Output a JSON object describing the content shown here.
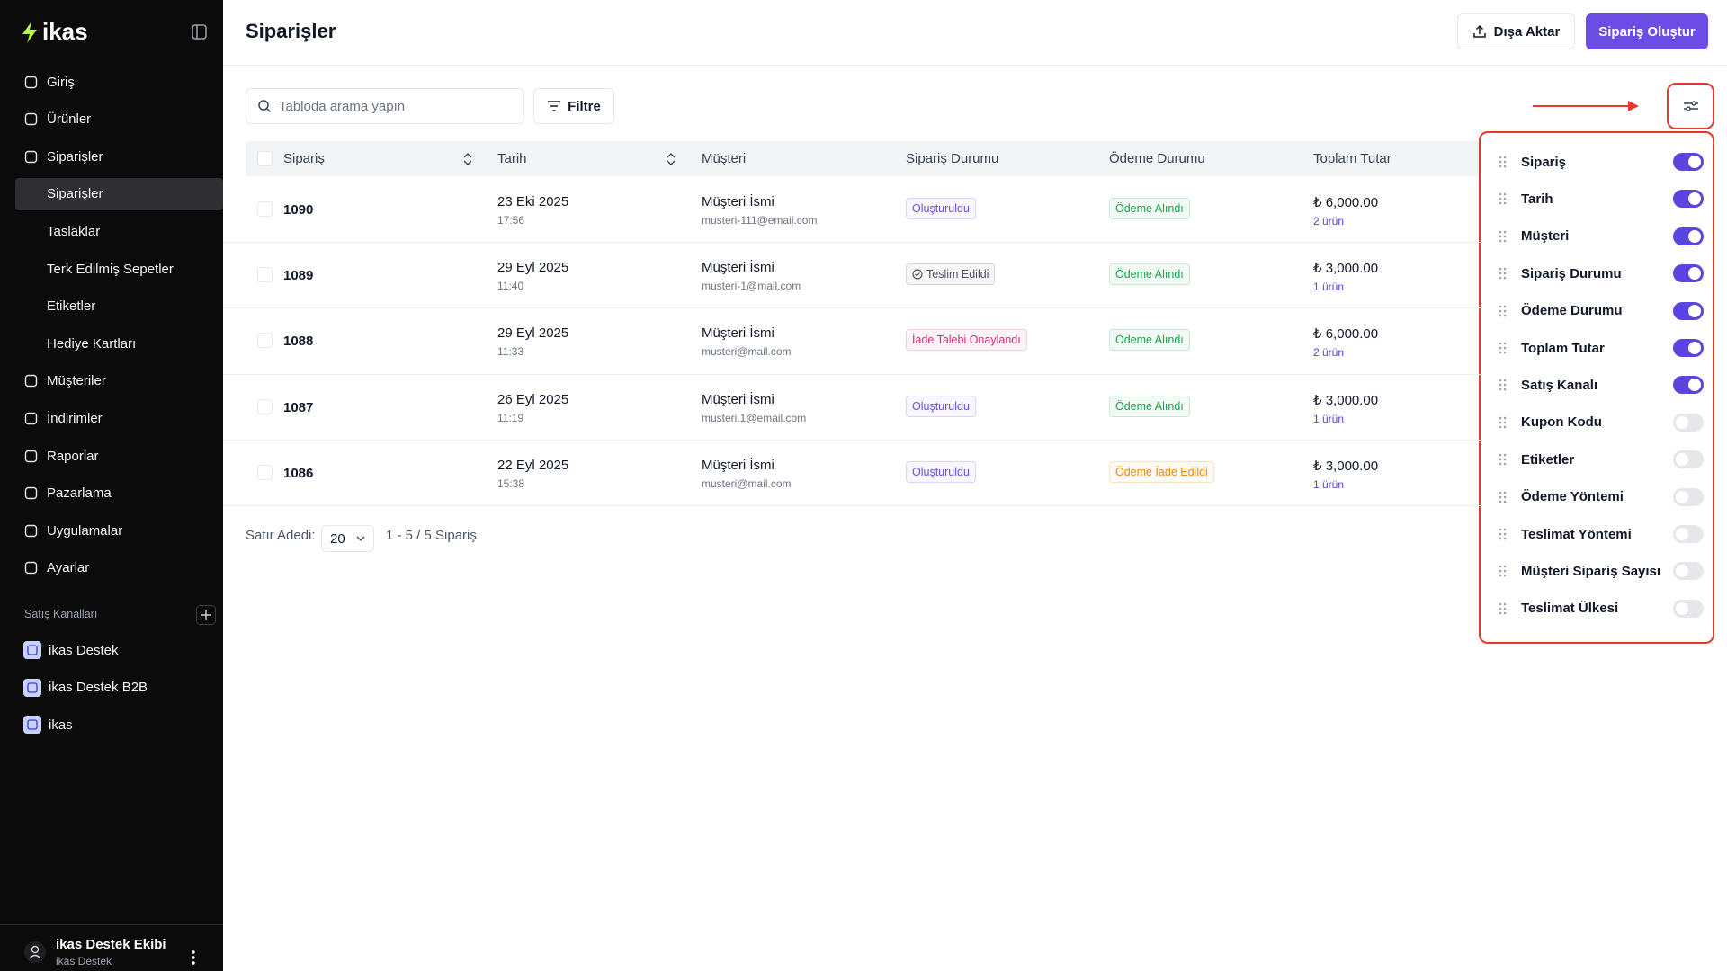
{
  "sidebar": {
    "brand": "ikas",
    "nav_top": [
      "Giriş",
      "Ürünler",
      "Siparişler"
    ],
    "sub_nav": [
      "Siparişler",
      "Taslaklar",
      "Terk Edilmiş Sepetler",
      "Etiketler",
      "Hediye Kartları"
    ],
    "nav_bottom": [
      "Müşteriler",
      "İndirimler",
      "Raporlar",
      "Pazarlama",
      "Uygulamalar",
      "Ayarlar"
    ],
    "channels_title": "Satış Kanalları",
    "channels": [
      "ikas Destek",
      "ikas Destek B2B",
      "ikas"
    ],
    "user": {
      "name": "ikas Destek Ekibi",
      "org": "ikas Destek"
    }
  },
  "header": {
    "title": "Siparişler",
    "export": "Dışa Aktar",
    "create": "Sipariş Oluştur"
  },
  "toolbar": {
    "search_placeholder": "Tabloda arama yapın",
    "filter": "Filtre"
  },
  "table": {
    "columns": [
      "Sipariş",
      "Tarih",
      "Müşteri",
      "Sipariş Durumu",
      "Ödeme Durumu",
      "Toplam Tutar"
    ],
    "rows": [
      {
        "order": "1090",
        "date": "23 Eki 2025",
        "time": "17:56",
        "customer": "Müşteri İsmi",
        "email": "musteri-111@email.com",
        "status": {
          "text": "Oluşturuldu",
          "color": "#6d4de6"
        },
        "payment": {
          "text": "Ödeme Alındı",
          "color": "#16a34a"
        },
        "total": "₺ 6,000.00",
        "items": "2 ürün"
      },
      {
        "order": "1089",
        "date": "29 Eyl 2025",
        "time": "11:40",
        "customer": "Müşteri İsmi",
        "email": "musteri-1@mail.com",
        "status": {
          "text": "Teslim Edildi",
          "color": "#4b5563"
        },
        "payment": {
          "text": "Ödeme Alındı",
          "color": "#16a34a"
        },
        "total": "₺ 3,000.00",
        "items": "1 ürün"
      },
      {
        "order": "1088",
        "date": "29 Eyl 2025",
        "time": "11:33",
        "customer": "Müşteri İsmi",
        "email": "musteri@mail.com",
        "status": {
          "text": "İade Talebi Onaylandı",
          "color": "#db2777"
        },
        "payment": {
          "text": "Ödeme Alındı",
          "color": "#16a34a"
        },
        "total": "₺ 6,000.00",
        "items": "2 ürün"
      },
      {
        "order": "1087",
        "date": "26 Eyl 2025",
        "time": "11:19",
        "customer": "Müşteri İsmi",
        "email": "musteri.1@email.com",
        "status": {
          "text": "Oluşturuldu",
          "color": "#6d4de6"
        },
        "payment": {
          "text": "Ödeme Alındı",
          "color": "#16a34a"
        },
        "total": "₺ 3,000.00",
        "items": "1 ürün"
      },
      {
        "order": "1086",
        "date": "22 Eyl 2025",
        "time": "15:38",
        "customer": "Müşteri İsmi",
        "email": "musteri@mail.com",
        "status": {
          "text": "Oluşturuldu",
          "color": "#6d4de6"
        },
        "payment": {
          "text": "Ödeme İade Edildi",
          "color": "#ea8a0c"
        },
        "total": "₺ 3,000.00",
        "items": "1 ürün"
      }
    ]
  },
  "footer": {
    "rows_label": "Satır Adedi:",
    "rows_value": "20",
    "range": "1 - 5 / 5 Sipariş"
  },
  "column_panel": {
    "items": [
      {
        "name": "Sipariş",
        "visible": true
      },
      {
        "name": "Tarih",
        "visible": true
      },
      {
        "name": "Müşteri",
        "visible": true
      },
      {
        "name": "Sipariş Durumu",
        "visible": true
      },
      {
        "name": "Ödeme Durumu",
        "visible": true
      },
      {
        "name": "Toplam Tutar",
        "visible": true
      },
      {
        "name": "Satış Kanalı",
        "visible": true
      },
      {
        "name": "Kupon Kodu",
        "visible": false
      },
      {
        "name": "Etiketler",
        "visible": false
      },
      {
        "name": "Ödeme Yöntemi",
        "visible": false
      },
      {
        "name": "Teslimat Yöntemi",
        "visible": false
      },
      {
        "name": "Müşteri Sipariş Sayısı",
        "visible": false
      },
      {
        "name": "Teslimat Ülkesi",
        "visible": false
      }
    ]
  }
}
